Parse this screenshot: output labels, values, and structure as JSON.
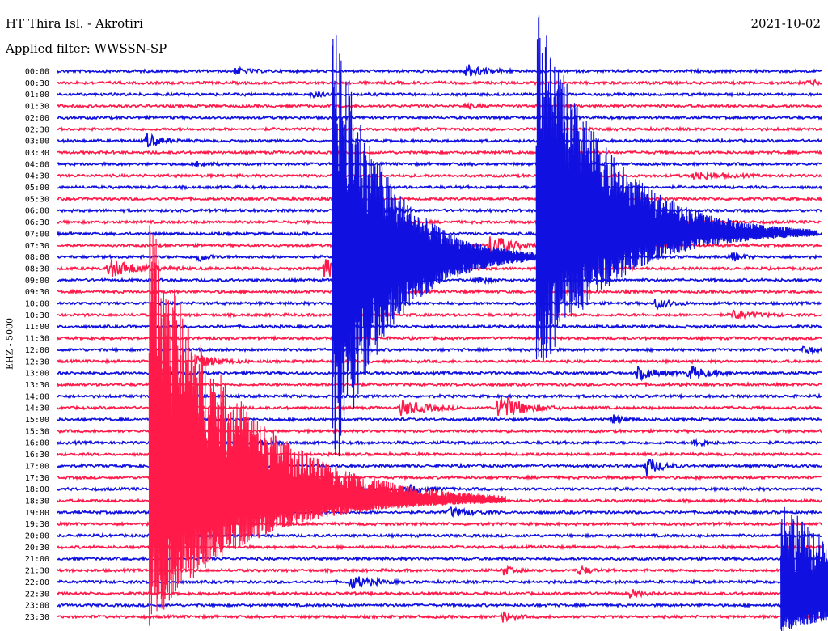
{
  "header": {
    "station": "HT Thira Isl. - Akrotiri",
    "date": "2021-10-02",
    "filter": "Applied filter: WWSSN-SP"
  },
  "chart_data": {
    "type": "line",
    "title": "HT Thira Isl. - Akrotiri",
    "subtitle": "Applied filter: WWSSN-SP",
    "ylabel": "EHZ - 5000",
    "rows": [
      "00:00",
      "00:30",
      "01:00",
      "01:30",
      "02:00",
      "02:30",
      "03:00",
      "03:30",
      "04:00",
      "04:30",
      "05:00",
      "05:30",
      "06:00",
      "06:30",
      "07:00",
      "07:30",
      "08:00",
      "08:30",
      "09:00",
      "09:30",
      "10:00",
      "10:30",
      "11:00",
      "11:30",
      "12:00",
      "12:30",
      "13:00",
      "13:30",
      "14:00",
      "14:30",
      "15:00",
      "15:30",
      "16:00",
      "16:30",
      "17:00",
      "17:30",
      "18:00",
      "18:30",
      "19:00",
      "19:30",
      "20:00",
      "20:30",
      "21:00",
      "21:30",
      "22:00",
      "22:30",
      "23:00",
      "23:30"
    ],
    "minutes_per_row": 30,
    "series_colors": {
      "even_rows": "#1010e0",
      "odd_rows": "#ff1a4a"
    },
    "events": [
      {
        "row": 0,
        "minute": 7,
        "amp": 4,
        "dur": 1.5
      },
      {
        "row": 0,
        "minute": 16,
        "amp": 9,
        "dur": 2
      },
      {
        "row": 1,
        "minute": 29.5,
        "amp": 4,
        "dur": 1
      },
      {
        "row": 2,
        "minute": 10,
        "amp": 4,
        "dur": 1
      },
      {
        "row": 3,
        "minute": 16,
        "amp": 3,
        "dur": 1
      },
      {
        "row": 6,
        "minute": 3.5,
        "amp": 9,
        "dur": 1.5
      },
      {
        "row": 8,
        "minute": 5.5,
        "amp": 4,
        "dur": 1
      },
      {
        "row": 9,
        "minute": 19.5,
        "amp": 5,
        "dur": 2
      },
      {
        "row": 9,
        "minute": 25,
        "amp": 5,
        "dur": 2.5
      },
      {
        "row": 10,
        "minute": 20,
        "amp": 5,
        "dur": 1.5
      },
      {
        "row": 12,
        "minute": 13,
        "amp": 4,
        "dur": 1
      },
      {
        "row": 15,
        "minute": 17,
        "amp": 16,
        "dur": 2
      },
      {
        "row": 16,
        "minute": 5.5,
        "amp": 7,
        "dur": 1
      },
      {
        "row": 16,
        "minute": 26.5,
        "amp": 6,
        "dur": 1
      },
      {
        "row": 17,
        "minute": 2,
        "amp": 12,
        "dur": 3
      },
      {
        "row": 17,
        "minute": 10.5,
        "amp": 12,
        "dur": 2.5
      },
      {
        "row": 18,
        "minute": 16.5,
        "amp": 6,
        "dur": 1
      },
      {
        "row": 20,
        "minute": 23.5,
        "amp": 7,
        "dur": 1.5
      },
      {
        "row": 21,
        "minute": 26.5,
        "amp": 6,
        "dur": 2
      },
      {
        "row": 24,
        "minute": 29.3,
        "amp": 6,
        "dur": 1
      },
      {
        "row": 25,
        "minute": 5.5,
        "amp": 8,
        "dur": 2
      },
      {
        "row": 26,
        "minute": 22.8,
        "amp": 8,
        "dur": 2
      },
      {
        "row": 26,
        "minute": 24.8,
        "amp": 9,
        "dur": 2
      },
      {
        "row": 29,
        "minute": 13.5,
        "amp": 10,
        "dur": 2.5
      },
      {
        "row": 29,
        "minute": 17.3,
        "amp": 18,
        "dur": 2.5
      },
      {
        "row": 30,
        "minute": 21.8,
        "amp": 6,
        "dur": 1
      },
      {
        "row": 32,
        "minute": 7.7,
        "amp": 6,
        "dur": 1
      },
      {
        "row": 32,
        "minute": 25,
        "amp": 6,
        "dur": 1
      },
      {
        "row": 34,
        "minute": 23.1,
        "amp": 12,
        "dur": 1.5
      },
      {
        "row": 36,
        "minute": 13.7,
        "amp": 6,
        "dur": 2
      },
      {
        "row": 37,
        "minute": 8.4,
        "amp": 20,
        "dur": 2.5
      },
      {
        "row": 38,
        "minute": 15.4,
        "amp": 6,
        "dur": 2
      },
      {
        "row": 43,
        "minute": 17.5,
        "amp": 6,
        "dur": 1
      },
      {
        "row": 43,
        "minute": 20.5,
        "amp": 6,
        "dur": 1
      },
      {
        "row": 44,
        "minute": 11.5,
        "amp": 9,
        "dur": 2
      },
      {
        "row": 45,
        "minute": 22.5,
        "amp": 6,
        "dur": 1
      },
      {
        "row": 47,
        "minute": 17.5,
        "amp": 7,
        "dur": 1
      }
    ],
    "major_events": [
      {
        "row": 16,
        "minute": 10.8,
        "up": 300,
        "down": 290,
        "dur": 8
      },
      {
        "row": 14,
        "minute": 18.8,
        "up": 290,
        "down": 185,
        "dur": 11
      },
      {
        "row": 37,
        "minute": 3.6,
        "up": 350,
        "down": 160,
        "dur": 14
      },
      {
        "row": 46,
        "minute": 28.4,
        "up": 140,
        "down": 35,
        "dur": 12
      }
    ]
  }
}
